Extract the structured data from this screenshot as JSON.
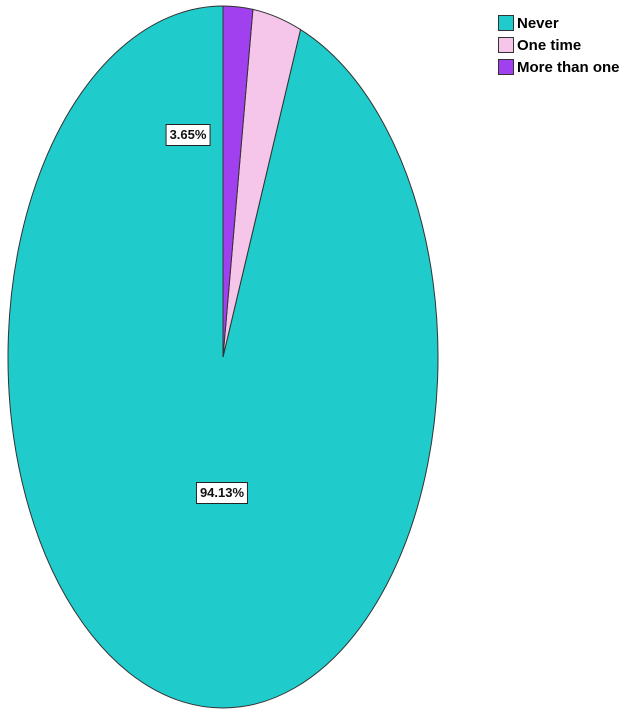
{
  "chart_data": {
    "type": "pie",
    "title": "",
    "legend_position": "top-right",
    "slices": [
      {
        "name": "Never",
        "value": 94.13,
        "label": "94.13%",
        "color": "#1fcbcb",
        "label_shown": true
      },
      {
        "name": "One time",
        "value": 3.65,
        "label": "3.65%",
        "color": "#f5c6ea",
        "label_shown": true
      },
      {
        "name": "More than one",
        "value": 2.22,
        "label": "",
        "color": "#a040ee",
        "label_shown": false
      }
    ]
  }
}
